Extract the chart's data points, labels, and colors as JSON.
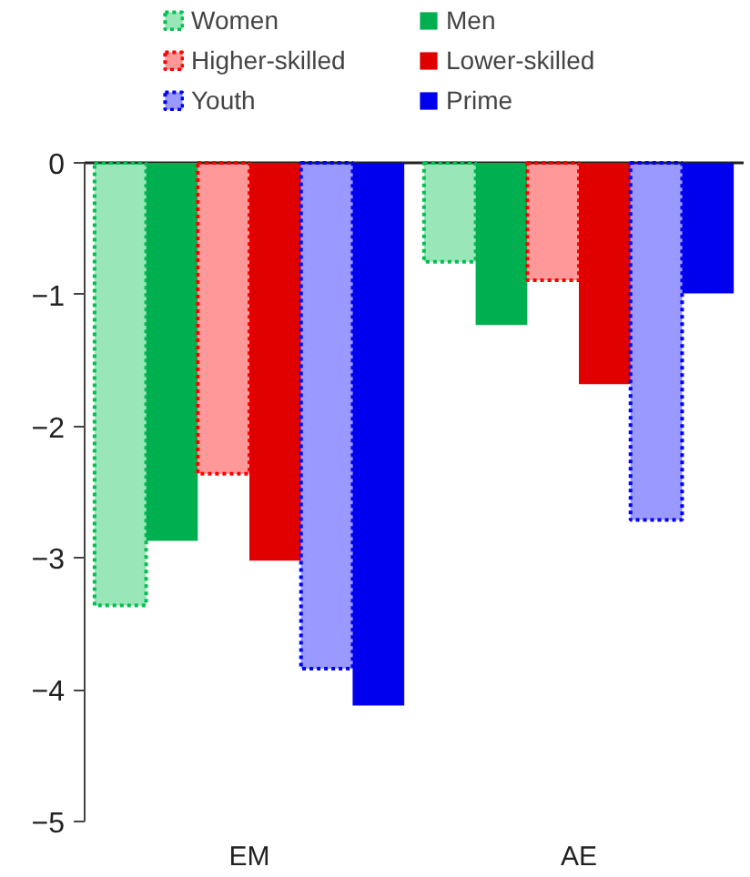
{
  "chart_data": {
    "type": "bar",
    "categories": [
      "EM",
      "AE"
    ],
    "series": [
      {
        "name": "Women",
        "color": "#00c050",
        "line_style": "dotted",
        "values": [
          -3.36,
          -0.75
        ]
      },
      {
        "name": "Men",
        "color": "#00b050",
        "values": [
          -2.87,
          -1.23
        ]
      },
      {
        "name": "Higher-skilled",
        "color": "#ff0000",
        "line_style": "dotted",
        "values": [
          -2.36,
          -0.89
        ]
      },
      {
        "name": "Lower-skilled",
        "color": "#e00000",
        "values": [
          -3.02,
          -1.68
        ]
      },
      {
        "name": "Youth",
        "color": "#0000ff",
        "line_style": "dotted",
        "values": [
          -3.84,
          -2.71
        ]
      },
      {
        "name": "Prime",
        "color": "#0000ee",
        "values": [
          -4.12,
          -0.99
        ]
      }
    ],
    "ylim": [
      -5,
      0
    ],
    "yticks": [
      0,
      -1,
      -2,
      -3,
      -4,
      -5
    ],
    "grid": false,
    "legend": "top"
  }
}
